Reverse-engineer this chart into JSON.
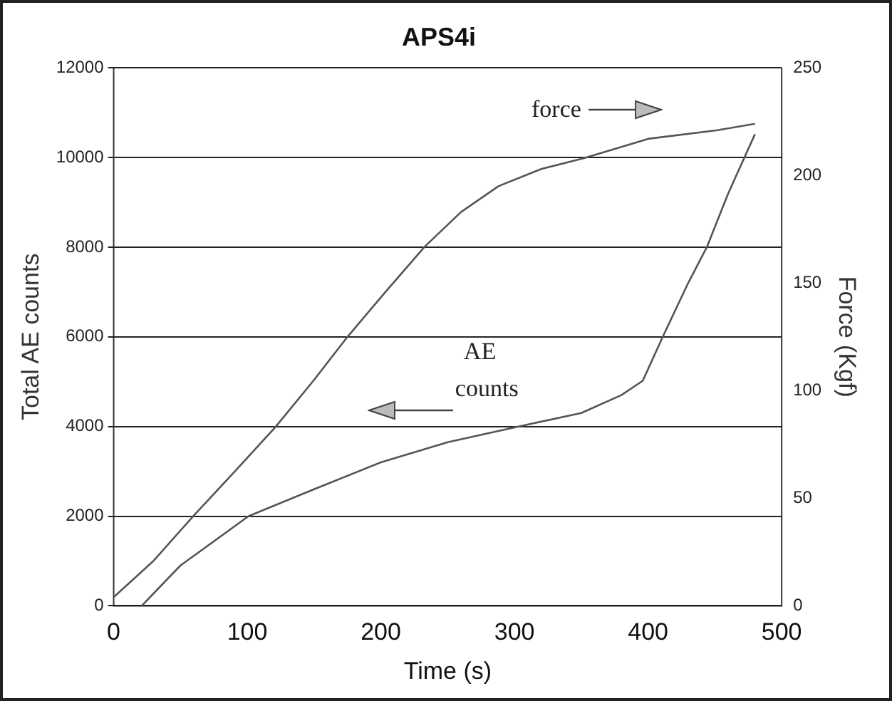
{
  "chart_data": {
    "type": "line",
    "title": "APS4i",
    "xlabel": "Time (s)",
    "ylabel": "Total AE counts",
    "y2label": "Force (Kgf)",
    "xlim": [
      0,
      500
    ],
    "xticks": [
      0,
      100,
      200,
      300,
      400,
      500
    ],
    "ylim": [
      0,
      12000
    ],
    "yticks": [
      0,
      2000,
      4000,
      6000,
      8000,
      10000,
      12000
    ],
    "y2lim": [
      0,
      250
    ],
    "y2ticks": [
      0,
      50,
      100,
      150,
      200,
      250
    ],
    "grid": "y",
    "legend": false,
    "marker": "none",
    "line_style": "solid",
    "annotations": [
      "force",
      "AE\ncounts"
    ],
    "series": [
      {
        "color": "#555555",
        "axis": "y2",
        "x": [
          0,
          30,
          60,
          90,
          121,
          150,
          175,
          205,
          233,
          260,
          288,
          320,
          352,
          400,
          452,
          480
        ],
        "values": [
          4,
          21,
          42,
          62,
          83,
          105,
          125,
          147,
          167,
          183,
          195,
          203,
          208,
          217,
          221,
          224
        ]
      },
      {
        "color": "#555555",
        "axis": "y",
        "x": [
          21,
          50,
          101,
          150,
          200,
          250,
          303,
          350,
          380,
          396,
          411,
          430,
          444,
          460,
          480
        ],
        "values": [
          0,
          900,
          2000,
          2600,
          3200,
          3650,
          4000,
          4300,
          4700,
          5020,
          6000,
          7200,
          8000,
          9200,
          10520
        ]
      }
    ]
  }
}
